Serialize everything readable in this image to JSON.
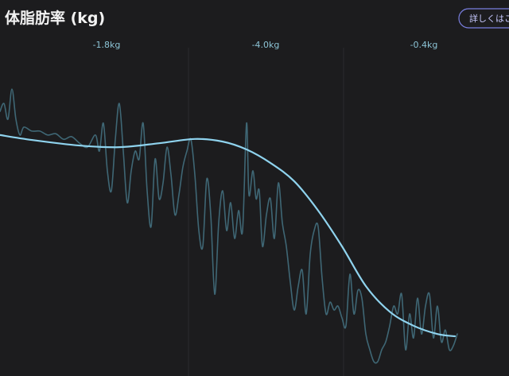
{
  "header": {
    "title": "体脂肪率 (kg)",
    "button": "詳しくはこ"
  },
  "chart_data": {
    "type": "line",
    "period_labels": [
      "-1.8kg",
      "-4.0kg",
      "-0.4kg"
    ],
    "xlim": [
      0,
      640
    ],
    "ylim": [
      0,
      100
    ],
    "series": [
      {
        "color": "#3f6775",
        "x": [
          0,
          5,
          10,
          15,
          20,
          25,
          30,
          40,
          50,
          60,
          70,
          80,
          90,
          100,
          110,
          120,
          125,
          130,
          135,
          140,
          145,
          150,
          155,
          160,
          165,
          170,
          175,
          180,
          185,
          190,
          195,
          200,
          205,
          210,
          215,
          220,
          225,
          230,
          235,
          240,
          245,
          250,
          255,
          260,
          265,
          270,
          275,
          280,
          285,
          290,
          295,
          300,
          305,
          310,
          313,
          318,
          322,
          326,
          330,
          335,
          340,
          345,
          350,
          355,
          360,
          365,
          370,
          375,
          380,
          385,
          390,
          395,
          400,
          405,
          410,
          415,
          420,
          425,
          430,
          435,
          440,
          445,
          450,
          455,
          460,
          465,
          470,
          475,
          480,
          485,
          490,
          495,
          500,
          505,
          510,
          515,
          520,
          525,
          530,
          535,
          540,
          545,
          550,
          555,
          560,
          565,
          570,
          575
        ],
        "values": [
          80.6,
          83.0,
          78.2,
          87.4,
          78.2,
          73.4,
          75.8,
          74.6,
          74.6,
          73.4,
          73.8,
          72.1,
          72.9,
          70.9,
          69.7,
          73.4,
          68.5,
          77.0,
          62.5,
          56.4,
          72.1,
          83.0,
          68.5,
          52.8,
          62.5,
          68.5,
          66.1,
          77.0,
          56.4,
          45.5,
          66.1,
          54.0,
          58.8,
          69.7,
          61.3,
          49.1,
          55.2,
          63.7,
          68.5,
          72.1,
          61.3,
          44.3,
          39.5,
          60.0,
          49.1,
          24.9,
          46.7,
          56.4,
          44.3,
          52.8,
          41.9,
          50.4,
          44.3,
          77.0,
          55.2,
          62.5,
          54.0,
          56.4,
          39.5,
          49.1,
          54.0,
          41.9,
          58.8,
          46.7,
          39.5,
          28.6,
          20.1,
          27.4,
          32.2,
          18.9,
          37.0,
          44.3,
          45.5,
          29.8,
          18.9,
          22.5,
          20.1,
          21.3,
          17.7,
          15.3,
          31.0,
          18.9,
          26.1,
          23.7,
          12.8,
          8.0,
          4.4,
          4.4,
          8.0,
          10.4,
          15.3,
          21.3,
          18.9,
          24.9,
          8.0,
          18.9,
          11.6,
          23.7,
          12.8,
          21.3,
          24.9,
          11.6,
          21.3,
          10.4,
          14.0,
          8.0,
          9.2,
          12.8
        ]
      },
      {
        "color": "#8fd3ee",
        "x": [
          0,
          40,
          100,
          150,
          200,
          245,
          280,
          310,
          340,
          370,
          400,
          430,
          460,
          490,
          520,
          550,
          572
        ],
        "values": [
          73.4,
          71.9,
          70.2,
          69.7,
          70.9,
          72.2,
          71.4,
          69.0,
          64.9,
          59.3,
          50.4,
          39.5,
          27.4,
          19.6,
          15.3,
          12.8,
          12.1
        ]
      }
    ]
  }
}
